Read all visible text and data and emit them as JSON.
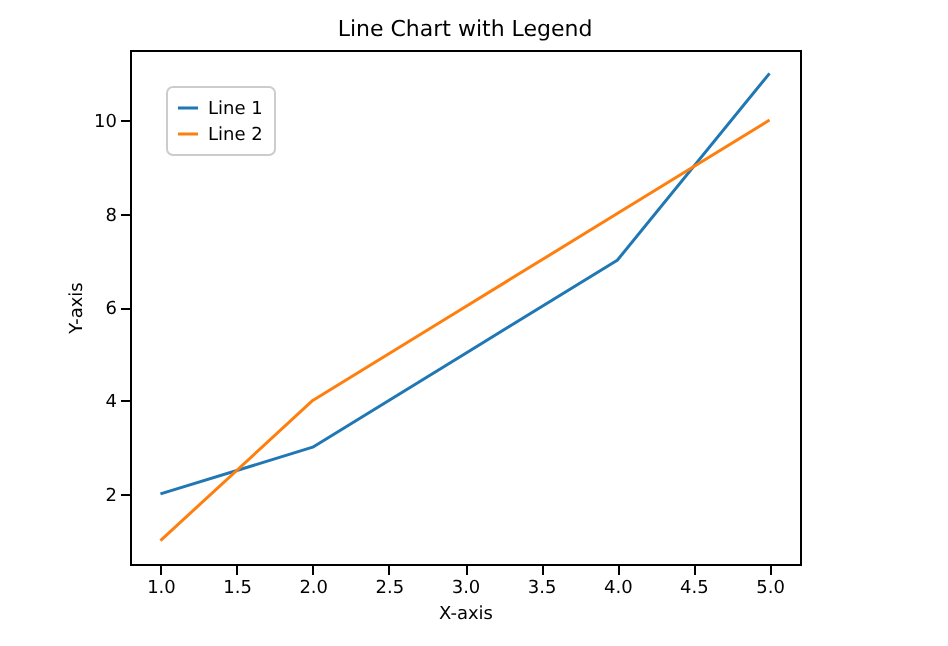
{
  "chart_data": {
    "type": "line",
    "title": "Line Chart with Legend",
    "xlabel": "X-axis",
    "ylabel": "Y-axis",
    "x": [
      1,
      2,
      3,
      4,
      5
    ],
    "series": [
      {
        "name": "Line 1",
        "color": "#1f77b4",
        "values": [
          2,
          3,
          5,
          7,
          11
        ]
      },
      {
        "name": "Line 2",
        "color": "#ff7f0e",
        "values": [
          1,
          4,
          6,
          8,
          10
        ]
      }
    ],
    "xlim": [
      0.8,
      5.2
    ],
    "ylim": [
      0.5,
      11.5
    ],
    "xticks": [
      {
        "value": 1,
        "label": "1.0"
      },
      {
        "value": 1.5,
        "label": "1.5"
      },
      {
        "value": 2,
        "label": "2.0"
      },
      {
        "value": 2.5,
        "label": "2.5"
      },
      {
        "value": 3,
        "label": "3.0"
      },
      {
        "value": 3.5,
        "label": "3.5"
      },
      {
        "value": 4,
        "label": "4.0"
      },
      {
        "value": 4.5,
        "label": "4.5"
      },
      {
        "value": 5,
        "label": "5.0"
      }
    ],
    "yticks": [
      2,
      4,
      6,
      8,
      10
    ],
    "legend": "top left",
    "grid": false,
    "line_style": "solid",
    "marker": "none"
  }
}
